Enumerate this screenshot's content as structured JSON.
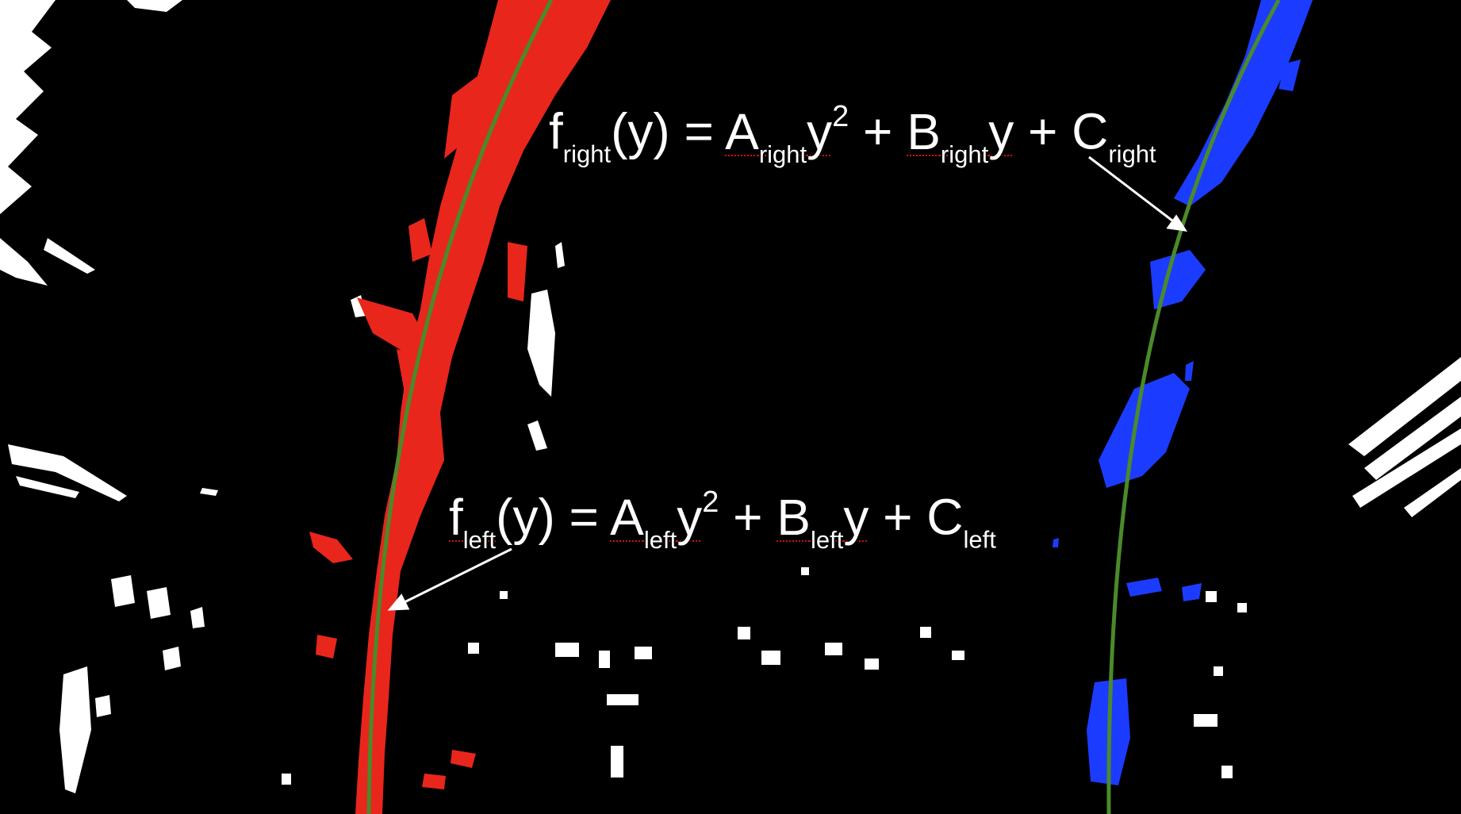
{
  "colors": {
    "background": "#000000",
    "left_lane_pixels": "#e8261c",
    "right_lane_pixels": "#1b3cff",
    "fitted_curve": "#4a8a2a",
    "noise_pixels": "#ffffff",
    "annotation_text": "#ffffff",
    "spellcheck_underline": "#d01010"
  },
  "equations": {
    "right": {
      "f": "f",
      "f_sub": "right",
      "arg": "(y) = ",
      "a": "A",
      "a_sub": "right",
      "y_sq": "y",
      "exp": "2",
      "plus1": " + ",
      "b": "B",
      "b_sub": "right",
      "y": "y",
      "plus2": " + ",
      "c": "C",
      "c_sub": "right"
    },
    "left": {
      "f": "f",
      "f_sub": "left",
      "arg": "(y) = ",
      "a": "A",
      "a_sub": "left",
      "y_sq": "y",
      "exp": "2",
      "plus1": " + ",
      "b": "B",
      "b_sub": "left",
      "y": "y",
      "plus2": " + ",
      "c": "C",
      "c_sub": "left"
    }
  }
}
